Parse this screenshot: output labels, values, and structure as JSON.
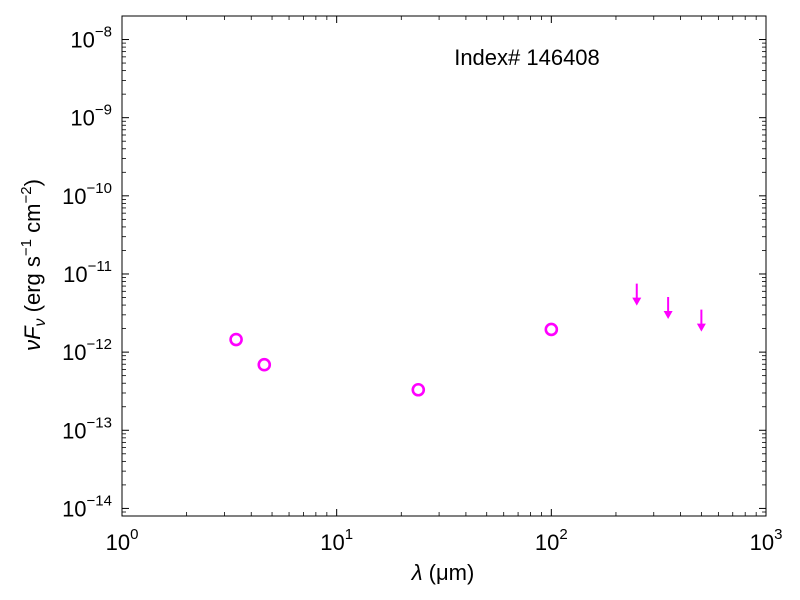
{
  "chart_data": {
    "type": "scatter",
    "title": "",
    "annotation": "Index# 146408",
    "xlabel": {
      "symbol": "λ",
      "unit": " (μm)"
    },
    "ylabel": {
      "prefix": "νF",
      "sub": "ν",
      "unit1": " (erg s",
      "exp1": "−1",
      "unit2": " cm",
      "exp2": "−2",
      "close": ")"
    },
    "x_scale": "log",
    "y_scale": "log",
    "xlim": [
      1,
      1000
    ],
    "ylim": [
      8e-15,
      2e-08
    ],
    "grid": false,
    "color": "#ff00ff",
    "x_ticks": [
      {
        "value": 1,
        "base": "10",
        "exp": "0"
      },
      {
        "value": 10,
        "base": "10",
        "exp": "1"
      },
      {
        "value": 100,
        "base": "10",
        "exp": "2"
      },
      {
        "value": 1000,
        "base": "10",
        "exp": "3"
      }
    ],
    "y_ticks": [
      {
        "value": 1e-14,
        "base": "10",
        "exp": "−14"
      },
      {
        "value": 1e-13,
        "base": "10",
        "exp": "−13"
      },
      {
        "value": 1e-12,
        "base": "10",
        "exp": "−12"
      },
      {
        "value": 1e-11,
        "base": "10",
        "exp": "−11"
      },
      {
        "value": 1e-10,
        "base": "10",
        "exp": "−10"
      },
      {
        "value": 1e-09,
        "base": "10",
        "exp": "−9"
      },
      {
        "value": 1e-08,
        "base": "10",
        "exp": "−8"
      }
    ],
    "detections": [
      {
        "x": 3.4,
        "y": 1.45e-12
      },
      {
        "x": 4.6,
        "y": 6.9e-13
      },
      {
        "x": 24,
        "y": 3.3e-13
      },
      {
        "x": 100,
        "y": 1.95e-12
      }
    ],
    "upper_limits": [
      {
        "x": 250,
        "y": 4.3e-12
      },
      {
        "x": 350,
        "y": 2.9e-12
      },
      {
        "x": 500,
        "y": 2e-12
      }
    ]
  }
}
